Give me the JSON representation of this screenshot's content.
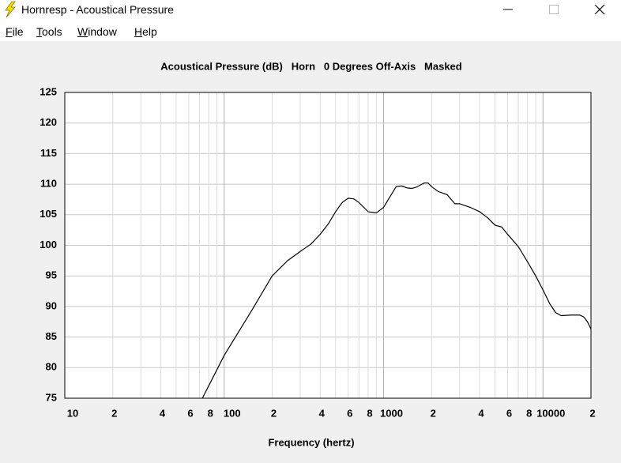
{
  "window": {
    "title": "Hornresp - Acoustical Pressure"
  },
  "menu": [
    "File",
    "Tools",
    "Window",
    "Help"
  ],
  "chart_data": {
    "type": "line",
    "title": "Acoustical Pressure (dB)   Horn   0 Degrees Off-Axis   Masked",
    "x_label": "Frequency (hertz)",
    "log_x": true,
    "grid": true,
    "color": "#000000",
    "xlim": [
      10,
      20000
    ],
    "ylim": [
      75,
      125
    ],
    "yticks": [
      75,
      80,
      85,
      90,
      95,
      100,
      105,
      110,
      115,
      120,
      125
    ],
    "xticks": [
      10,
      {
        "value": 20,
        "label": "2"
      },
      {
        "value": 40,
        "label": "4"
      },
      {
        "value": 60,
        "label": "6"
      },
      {
        "value": 80,
        "label": "8"
      },
      100,
      {
        "value": 200,
        "label": "2"
      },
      {
        "value": 400,
        "label": "4"
      },
      {
        "value": 600,
        "label": "6"
      },
      {
        "value": 800,
        "label": "8"
      },
      1000,
      {
        "value": 2000,
        "label": "2"
      },
      {
        "value": 4000,
        "label": "4"
      },
      {
        "value": 6000,
        "label": "6"
      },
      {
        "value": 8000,
        "label": "8"
      },
      10000,
      {
        "value": 20000,
        "label": "2"
      }
    ],
    "xgrid": [
      30,
      50,
      70,
      90,
      300,
      500,
      700,
      900,
      3000,
      5000,
      7000,
      9000
    ],
    "x": [
      73,
      100,
      150,
      200,
      250,
      300,
      350,
      400,
      450,
      500,
      550,
      600,
      650,
      700,
      800,
      900,
      1000,
      1100,
      1200,
      1300,
      1400,
      1500,
      1600,
      1800,
      1900,
      2000,
      2200,
      2500,
      2800,
      3000,
      3500,
      4000,
      4500,
      5000,
      5500,
      6000,
      7000,
      8000,
      9000,
      10000,
      11000,
      12000,
      13000,
      15000,
      17000,
      18000,
      19000,
      20000
    ],
    "values": [
      75,
      82,
      89.5,
      95,
      97.5,
      99,
      100.2,
      101.8,
      103.5,
      105.5,
      107,
      107.7,
      107.6,
      107,
      105.5,
      105.3,
      106.2,
      108,
      109.6,
      109.7,
      109.4,
      109.3,
      109.5,
      110.2,
      110.2,
      109.6,
      108.8,
      108.3,
      106.8,
      106.8,
      106.2,
      105.5,
      104.5,
      103.3,
      103,
      101.8,
      99.8,
      97.3,
      95,
      92.7,
      90.5,
      89,
      88.5,
      88.6,
      88.6,
      88.3,
      87.5,
      86.3
    ]
  }
}
